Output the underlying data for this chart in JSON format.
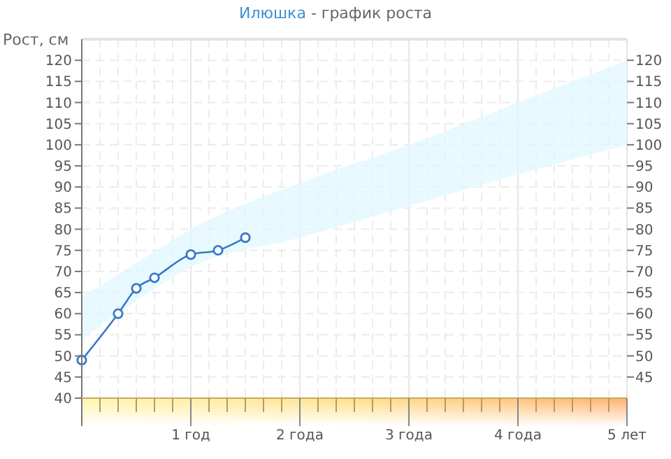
{
  "chart_data": {
    "type": "line",
    "title": "Илюшка - график роста",
    "ylabel": "Рост, см",
    "xlim": [
      0,
      5
    ],
    "xticks": [
      {
        "value": 0.1667,
        "label": null
      },
      {
        "value": 0.3333,
        "label": null
      },
      {
        "value": 0.5,
        "label": null
      },
      {
        "value": 0.6667,
        "label": null
      },
      {
        "value": 0.8333,
        "label": null
      },
      {
        "value": 1,
        "label": "1 год"
      },
      {
        "value": 1.1667,
        "label": null
      },
      {
        "value": 1.3333,
        "label": null
      },
      {
        "value": 1.5,
        "label": null
      },
      {
        "value": 1.6667,
        "label": null
      },
      {
        "value": 1.8333,
        "label": null
      },
      {
        "value": 2,
        "label": "2 года"
      },
      {
        "value": 2.1667,
        "label": null
      },
      {
        "value": 2.3333,
        "label": null
      },
      {
        "value": 2.5,
        "label": null
      },
      {
        "value": 2.6667,
        "label": null
      },
      {
        "value": 2.8333,
        "label": null
      },
      {
        "value": 3,
        "label": "3 года"
      },
      {
        "value": 3.1667,
        "label": null
      },
      {
        "value": 3.3333,
        "label": null
      },
      {
        "value": 3.5,
        "label": null
      },
      {
        "value": 3.6667,
        "label": null
      },
      {
        "value": 3.8333,
        "label": null
      },
      {
        "value": 4,
        "label": "4 года"
      },
      {
        "value": 4.1667,
        "label": null
      },
      {
        "value": 4.3333,
        "label": null
      },
      {
        "value": 4.5,
        "label": null
      },
      {
        "value": 4.6667,
        "label": null
      },
      {
        "value": 4.8333,
        "label": null
      },
      {
        "value": 5,
        "label": "5 лет"
      }
    ],
    "ylim": [
      40,
      125
    ],
    "yticks": [
      40,
      45,
      50,
      55,
      60,
      65,
      70,
      75,
      80,
      85,
      90,
      95,
      100,
      105,
      110,
      115,
      120
    ],
    "y2lim": [
      40,
      125
    ],
    "y2ticks": [
      45,
      50,
      55,
      60,
      65,
      70,
      75,
      80,
      85,
      90,
      95,
      100,
      105,
      110,
      115,
      120
    ],
    "grid": true,
    "marker": "circle",
    "line_style": "solid",
    "series": [
      {
        "type": "area",
        "color": "#e0f8ff",
        "x": [
          0,
          0.5,
          1,
          2,
          3,
          4,
          5
        ],
        "values": [
          null,
          null,
          null,
          null,
          null,
          null,
          null
        ],
        "lower": [
          54,
          63,
          71,
          78,
          85.5,
          93,
          100
        ],
        "upper": [
          64,
          72,
          80,
          91,
          100,
          110,
          120
        ]
      },
      {
        "color": "#3a78c8",
        "x": [
          0,
          0.3333,
          0.5,
          0.6667,
          1,
          1.25,
          1.5
        ],
        "values": [
          49,
          60,
          66,
          68.5,
          74,
          75,
          78
        ]
      }
    ]
  }
}
